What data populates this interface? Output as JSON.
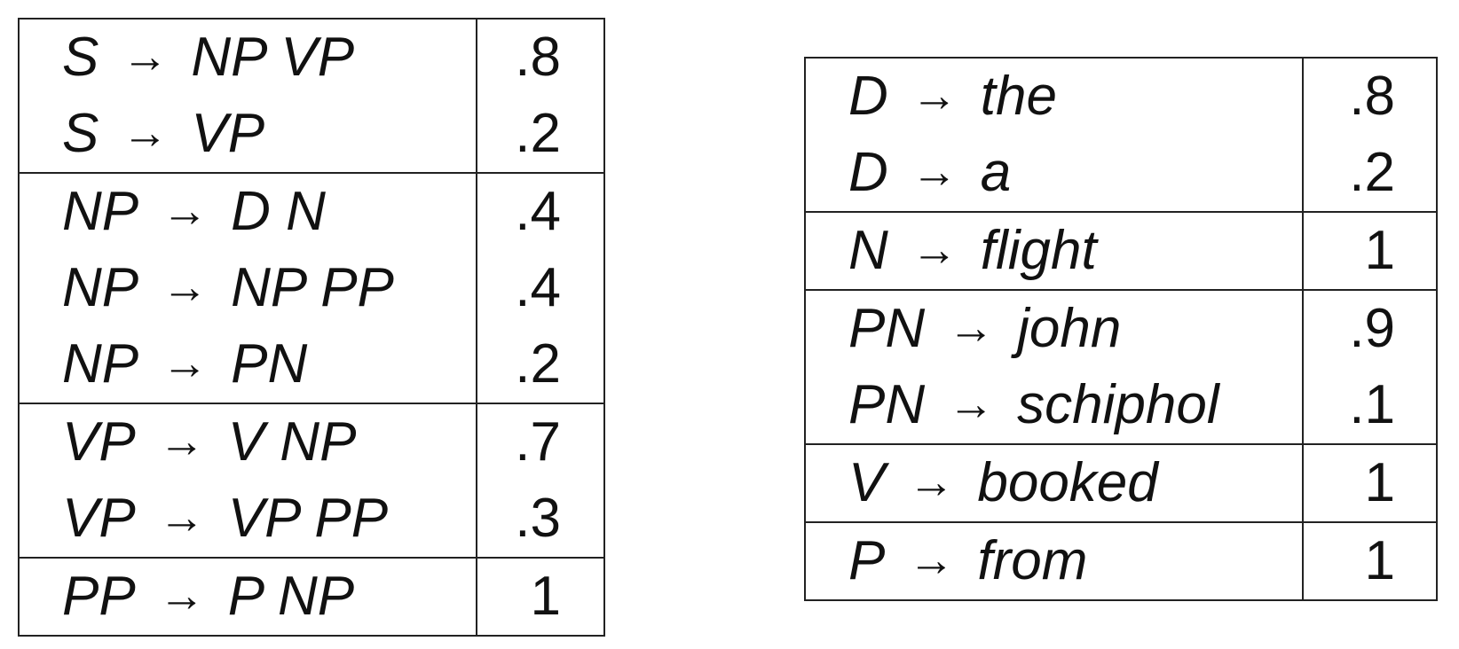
{
  "arrow": "→",
  "left_table": [
    {
      "rules": [
        {
          "lhs": "S",
          "rhs": "NP VP",
          "prob": ".8"
        },
        {
          "lhs": "S",
          "rhs": "VP",
          "prob": ".2"
        }
      ]
    },
    {
      "rules": [
        {
          "lhs": "NP",
          "rhs": "D N",
          "prob": ".4"
        },
        {
          "lhs": "NP",
          "rhs": "NP PP",
          "prob": ".4"
        },
        {
          "lhs": "NP",
          "rhs": "PN",
          "prob": ".2"
        }
      ]
    },
    {
      "rules": [
        {
          "lhs": "VP",
          "rhs": "V NP",
          "prob": ".7"
        },
        {
          "lhs": "VP",
          "rhs": "VP PP",
          "prob": ".3"
        }
      ]
    },
    {
      "rules": [
        {
          "lhs": "PP",
          "rhs": "P NP",
          "prob": "1"
        }
      ]
    }
  ],
  "right_table": [
    {
      "rules": [
        {
          "lhs": "D",
          "rhs": "the",
          "prob": ".8"
        },
        {
          "lhs": "D",
          "rhs": "a",
          "prob": ".2"
        }
      ]
    },
    {
      "rules": [
        {
          "lhs": "N",
          "rhs": "flight",
          "prob": "1"
        }
      ]
    },
    {
      "rules": [
        {
          "lhs": "PN",
          "rhs": "john",
          "prob": ".9"
        },
        {
          "lhs": "PN",
          "rhs": "schiphol",
          "prob": ".1"
        }
      ]
    },
    {
      "rules": [
        {
          "lhs": "V",
          "rhs": "booked",
          "prob": "1"
        }
      ]
    },
    {
      "rules": [
        {
          "lhs": "P",
          "rhs": "from",
          "prob": "1"
        }
      ]
    }
  ]
}
